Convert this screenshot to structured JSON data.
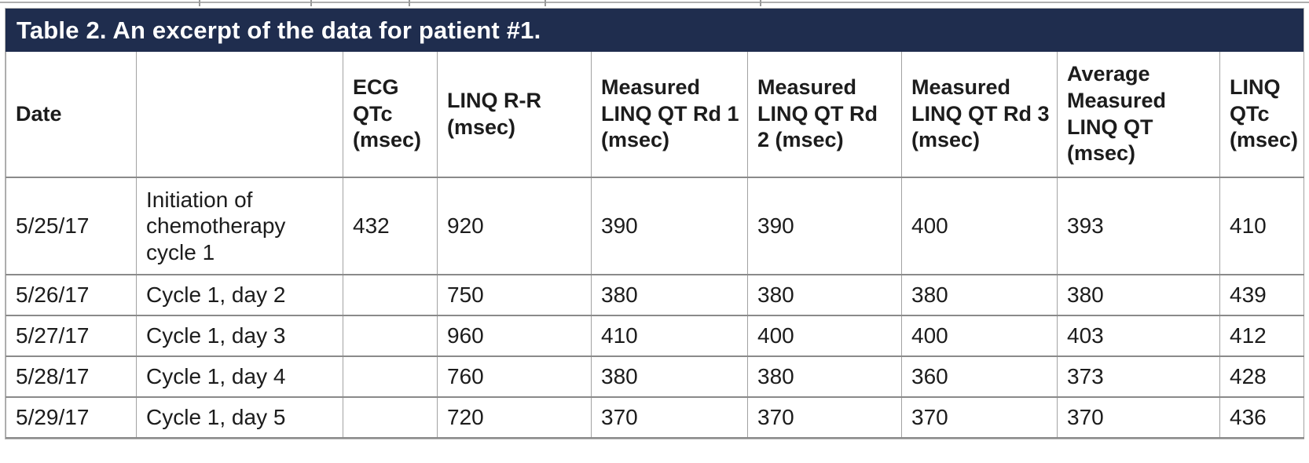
{
  "table": {
    "title": "Table 2. An excerpt of the data for patient #1.",
    "columns": [
      "Date",
      "",
      "ECG QTc (msec)",
      "LINQ R-R (msec)",
      "Measured LINQ QT Rd 1 (msec)",
      "Measured LINQ QT Rd 2 (msec)",
      "Measured LINQ QT Rd 3 (msec)",
      "Average Measured LINQ QT (msec)",
      "LINQ QTc (msec)"
    ],
    "rows": [
      [
        "5/25/17",
        "Initiation of chemotherapy cycle 1",
        "432",
        "920",
        "390",
        "390",
        "400",
        "393",
        "410"
      ],
      [
        "5/26/17",
        "Cycle 1, day 2",
        "",
        "750",
        "380",
        "380",
        "380",
        "380",
        "439"
      ],
      [
        "5/27/17",
        "Cycle 1, day 3",
        "",
        "960",
        "410",
        "400",
        "400",
        "403",
        "412"
      ],
      [
        "5/28/17",
        "Cycle 1, day 4",
        "",
        "760",
        "380",
        "380",
        "360",
        "373",
        "428"
      ],
      [
        "5/29/17",
        "Cycle 1, day 5",
        "",
        "720",
        "370",
        "370",
        "370",
        "370",
        "436"
      ]
    ],
    "colors": {
      "title_bg": "#1f2d4e",
      "title_text": "#ffffff",
      "grid_horizontal": "#8a8a8a",
      "grid_vertical": "#a2a2a2",
      "cell_text": "#1c1c1c"
    }
  },
  "chart_data": {
    "type": "table",
    "title": "Table 2. An excerpt of the data for patient #1.",
    "columns": [
      "Date",
      "",
      "ECG QTc (msec)",
      "LINQ R-R (msec)",
      "Measured LINQ QT Rd 1 (msec)",
      "Measured LINQ QT Rd 2 (msec)",
      "Measured LINQ QT Rd 3 (msec)",
      "Average Measured LINQ QT (msec)",
      "LINQ QTc (msec)"
    ],
    "rows": [
      [
        "5/25/17",
        "Initiation of chemotherapy cycle 1",
        432,
        920,
        390,
        390,
        400,
        393,
        410
      ],
      [
        "5/26/17",
        "Cycle 1, day 2",
        null,
        750,
        380,
        380,
        380,
        380,
        439
      ],
      [
        "5/27/17",
        "Cycle 1, day 3",
        null,
        960,
        410,
        400,
        400,
        403,
        412
      ],
      [
        "5/28/17",
        "Cycle 1, day 4",
        null,
        760,
        380,
        380,
        360,
        373,
        428
      ],
      [
        "5/29/17",
        "Cycle 1, day 5",
        null,
        720,
        370,
        370,
        370,
        370,
        436
      ]
    ]
  }
}
